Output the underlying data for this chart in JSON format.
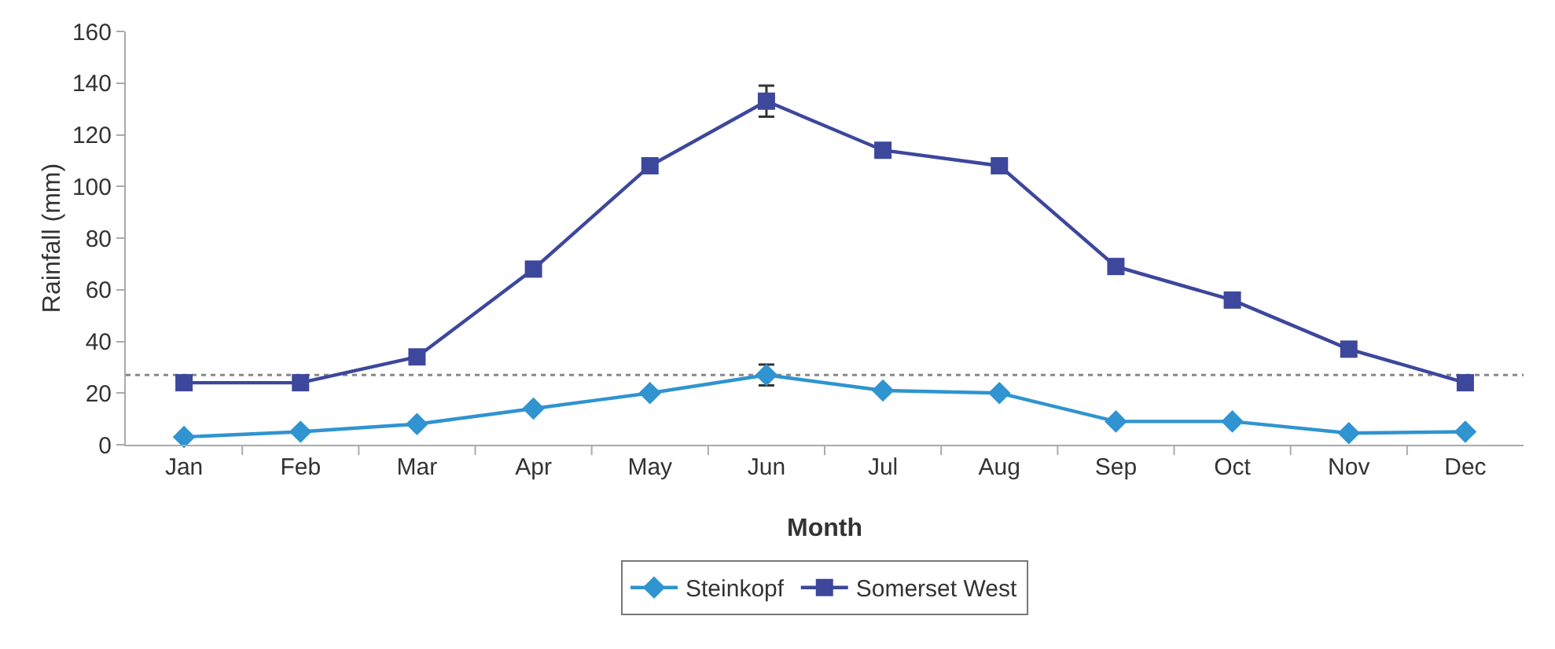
{
  "chart_data": {
    "type": "line",
    "xlabel": "Month",
    "ylabel": "Rainfall (mm)",
    "categories": [
      "Jan",
      "Feb",
      "Mar",
      "Apr",
      "May",
      "Jun",
      "Jul",
      "Aug",
      "Sep",
      "Oct",
      "Nov",
      "Dec"
    ],
    "series": [
      {
        "name": "Steinkopf",
        "color": "#2f94d0",
        "marker": "diamond",
        "values": [
          3,
          5,
          8,
          14,
          20,
          27,
          21,
          20,
          9,
          9,
          4.5,
          5
        ],
        "errors": [
          null,
          null,
          null,
          null,
          null,
          4,
          null,
          null,
          null,
          null,
          null,
          null
        ]
      },
      {
        "name": "Somerset West",
        "color": "#3d479c",
        "marker": "square",
        "values": [
          24,
          24,
          34,
          68,
          108,
          133,
          114,
          108,
          69,
          56,
          37,
          24
        ],
        "errors": [
          null,
          null,
          null,
          null,
          null,
          6,
          null,
          null,
          null,
          null,
          null,
          null
        ]
      }
    ],
    "ylim": [
      0,
      160
    ],
    "yticks": [
      0,
      20,
      40,
      60,
      80,
      100,
      120,
      140,
      160
    ],
    "ref_lines": [
      {
        "axis": "y",
        "value": 27,
        "color": "#888888",
        "line_style": "dotted"
      }
    ],
    "grid": false,
    "legend": "bottom",
    "line_style": "solid"
  }
}
